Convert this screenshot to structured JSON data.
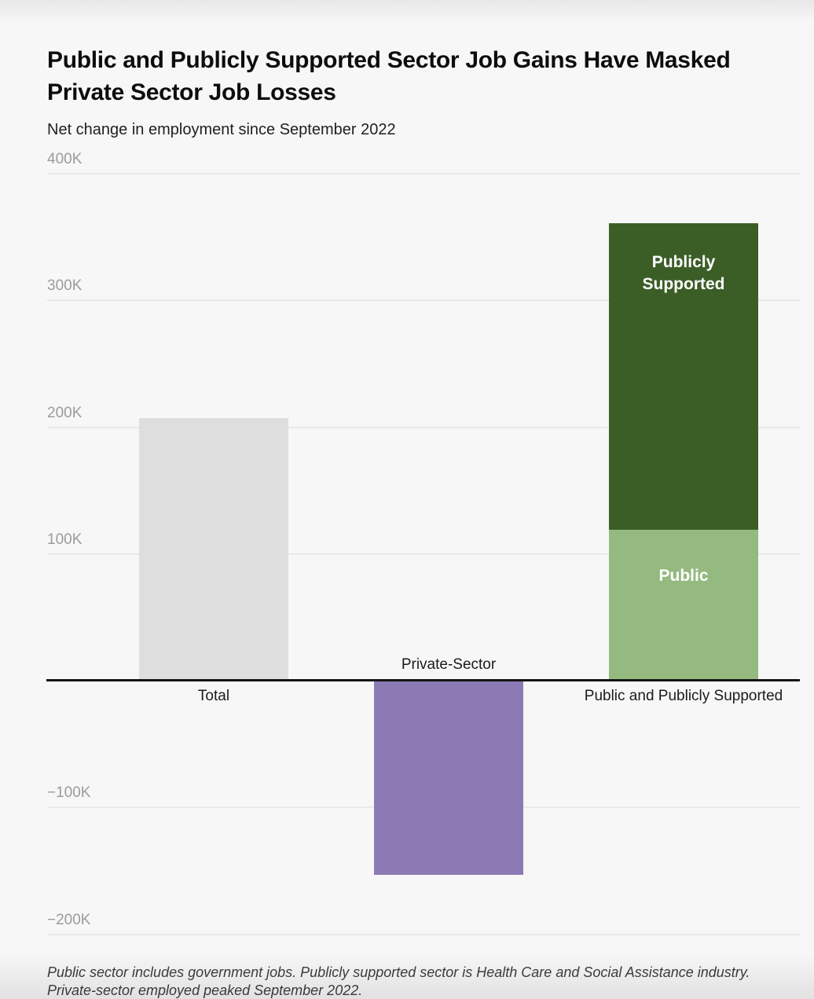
{
  "header": {
    "title": "Public and Publicly Supported Sector Job Gains Have Masked Private Sector Job Losses",
    "subtitle": "Net change in employment since September 2022"
  },
  "footnote": {
    "line1": "Public sector includes government jobs. Publicly supported sector is Health Care and Social Assistance industry.",
    "line2": "Private-sector employed peaked September 2022."
  },
  "chart_data": {
    "type": "bar",
    "stacked": true,
    "title": "Public and Publicly Supported Sector Job Gains Have Masked Private Sector Job Losses",
    "subtitle": "Net change in employment since September 2022",
    "unit": "thousands of jobs (K)",
    "xlabel": "",
    "ylabel": "Net change in employment since September 2022",
    "ylim": [
      -230,
      400
    ],
    "grid": true,
    "legend": "none (labels drawn inside bar segments)",
    "yticks": [
      {
        "value": 400,
        "label": "400K"
      },
      {
        "value": 300,
        "label": "300K"
      },
      {
        "value": 200,
        "label": "200K"
      },
      {
        "value": 100,
        "label": "100K"
      },
      {
        "value": -100,
        "label": "−100K"
      },
      {
        "value": -200,
        "label": "−200K"
      }
    ],
    "categories": [
      "Total",
      "Private-Sector",
      "Public and Publicly Supported"
    ],
    "series": [
      {
        "name": "Total",
        "color": "#dedede",
        "values": [
          207,
          null,
          null
        ]
      },
      {
        "name": "Private-Sector",
        "color": "#8c7ab5",
        "values": [
          null,
          -153,
          null
        ]
      },
      {
        "name": "Public",
        "color": "#94ba80",
        "values": [
          null,
          null,
          119
        ]
      },
      {
        "name": "Publicly Supported",
        "color": "#3b5e27",
        "values": [
          null,
          null,
          242
        ]
      }
    ],
    "bars": [
      {
        "category": "Total",
        "category_label_position": "below-axis",
        "segments": [
          {
            "name": "Total",
            "value": 207,
            "color": "#dedede",
            "inner_label": "",
            "inner_label_color": ""
          }
        ]
      },
      {
        "category": "Private-Sector",
        "category_label_position": "above-axis",
        "segments": [
          {
            "name": "Private-Sector",
            "value": -153,
            "color": "#8c7ab5",
            "inner_label": "",
            "inner_label_color": ""
          }
        ]
      },
      {
        "category": "Public and Publicly Supported",
        "category_label_position": "below-axis",
        "segments": [
          {
            "name": "Public",
            "value": 119,
            "color": "#94ba80",
            "inner_label": "Public",
            "inner_label_color": "#ffffff"
          },
          {
            "name": "Publicly Supported",
            "value": 242,
            "color": "#3b5e27",
            "inner_label": "Publicly Supported",
            "inner_label_color": "#ffffff"
          }
        ]
      }
    ],
    "colors": {
      "background": "#f7f7f7",
      "gridline": "#e9e9e9",
      "zero_axis": "#141414",
      "tick_label": "#9b9b9b",
      "category_label": "#1b1b1b"
    }
  }
}
